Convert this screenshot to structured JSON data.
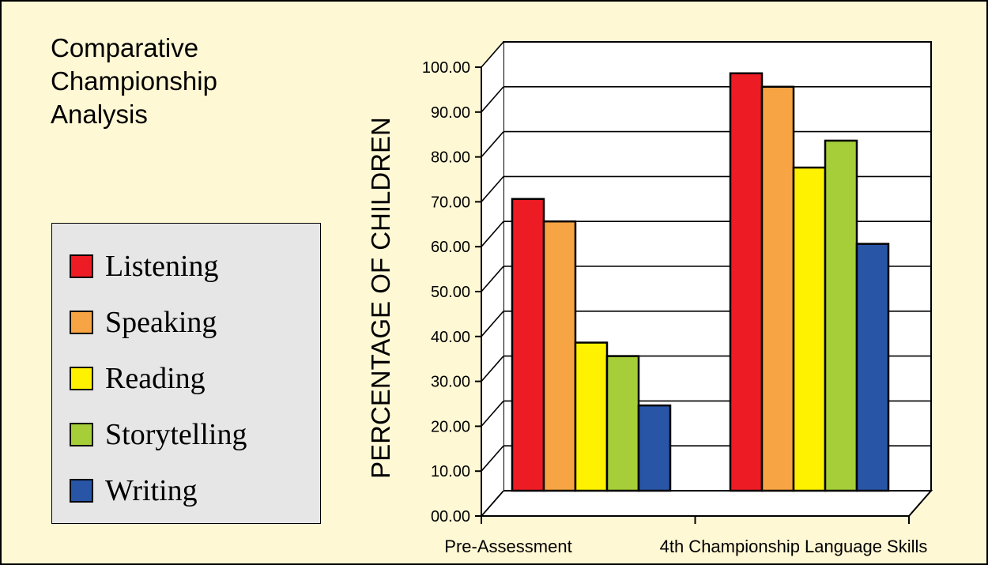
{
  "colors": {
    "background": "#fff8d4",
    "legend_background": "#e6e6e6",
    "Listening": "#ed1c24",
    "Speaking": "#f7a444",
    "Reading": "#fff200",
    "Storytelling": "#a6ce39",
    "Writing": "#2855a6"
  },
  "chart_data": {
    "type": "bar",
    "title": "Comparative Championship Analysis",
    "title_lines": [
      "Comparative",
      "Championship",
      "Analysis"
    ],
    "ylabel": "PERCENTAGE OF CHILDREN",
    "xlabel": "",
    "categories": [
      "Pre-Assessment",
      "4th Championship Language Skills"
    ],
    "category_labels": [
      "Pre-Assessment",
      "4th Championship Language Skills"
    ],
    "ylim": [
      0,
      100
    ],
    "y_ticks": [
      "00.00",
      "10.00",
      "20.00",
      "30.00",
      "40.00",
      "50.00",
      "60.00",
      "70.00",
      "80.00",
      "90.00",
      "100.00"
    ],
    "grid": true,
    "legend_position": "left",
    "three_d": true,
    "series": [
      {
        "name": "Listening",
        "color": "#ed1c24",
        "values": [
          65,
          93
        ]
      },
      {
        "name": "Speaking",
        "color": "#f7a444",
        "values": [
          60,
          90
        ]
      },
      {
        "name": "Reading",
        "color": "#fff200",
        "values": [
          33,
          72
        ]
      },
      {
        "name": "Storytelling",
        "color": "#a6ce39",
        "values": [
          30,
          78
        ]
      },
      {
        "name": "Writing",
        "color": "#2855a6",
        "values": [
          19,
          55
        ]
      }
    ]
  }
}
